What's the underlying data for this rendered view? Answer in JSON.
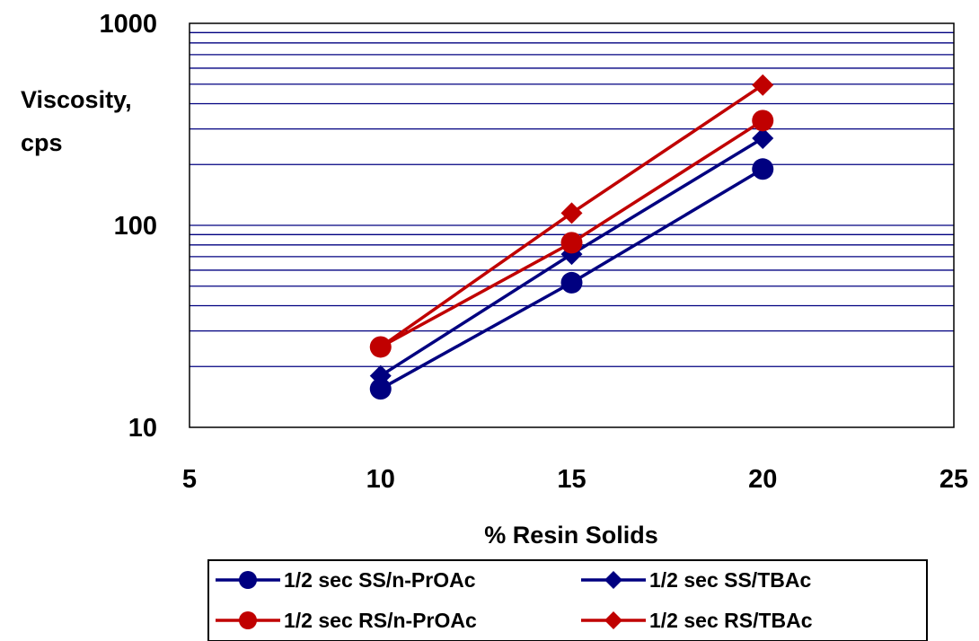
{
  "chart_data": {
    "type": "line",
    "title": "",
    "xlabel": "% Resin Solids",
    "ylabel_lines": [
      "Viscosity,",
      "cps"
    ],
    "x_scale": "linear",
    "y_scale": "log",
    "xlim": [
      5,
      25
    ],
    "ylim": [
      10,
      1000
    ],
    "x_ticks": [
      5,
      10,
      15,
      20,
      25
    ],
    "y_ticks": [
      10,
      100,
      1000
    ],
    "grid": "horizontal minor log gridlines",
    "legend_position": "bottom",
    "series": [
      {
        "name": "1/2 sec SS/n-PrOAc",
        "color": "#000080",
        "marker": "circle",
        "x": [
          10,
          15,
          20
        ],
        "y": [
          15.5,
          52,
          190
        ]
      },
      {
        "name": "1/2 sec SS/TBAc",
        "color": "#000080",
        "marker": "diamond",
        "x": [
          10,
          15,
          20
        ],
        "y": [
          18,
          72,
          270
        ]
      },
      {
        "name": "1/2 sec RS/n-PrOAc",
        "color": "#c00000",
        "marker": "circle",
        "x": [
          10,
          15,
          20
        ],
        "y": [
          25,
          82,
          330
        ]
      },
      {
        "name": "1/2 sec RS/TBAc",
        "color": "#c00000",
        "marker": "diamond",
        "x": [
          10,
          15,
          20
        ],
        "y": [
          25,
          115,
          495
        ]
      }
    ]
  }
}
